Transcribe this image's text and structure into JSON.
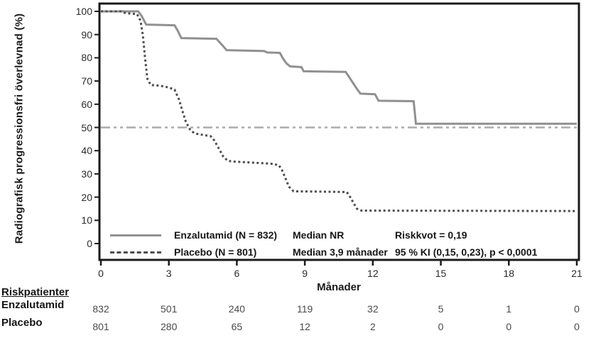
{
  "chart_data": {
    "type": "line",
    "subtype": "kaplan-meier-step",
    "title": "",
    "ylabel": "Radiografisk progressionsfri överlevnad (%)",
    "xlabel": "Månader",
    "xlim": [
      0,
      21
    ],
    "ylim": [
      0,
      100
    ],
    "xticks": [
      "0",
      "3",
      "6",
      "9",
      "12",
      "15",
      "18",
      "21"
    ],
    "yticks": [
      "0",
      "10",
      "20",
      "30",
      "40",
      "50",
      "60",
      "70",
      "80",
      "90",
      "100"
    ],
    "grid": false,
    "legend_position": "bottom-left-inside",
    "reference_line": {
      "y": 50,
      "style": "dash-dot"
    },
    "series": [
      {
        "name": "Enzalutamid (N = 832)",
        "style": "solid",
        "points": [
          [
            0,
            100
          ],
          [
            1.65,
            100
          ],
          [
            1.8,
            98
          ],
          [
            2.0,
            94.3
          ],
          [
            3.25,
            94.0
          ],
          [
            3.4,
            91.5
          ],
          [
            3.55,
            88.5
          ],
          [
            5.1,
            88.2
          ],
          [
            5.35,
            85.5
          ],
          [
            5.55,
            83.3
          ],
          [
            7.2,
            82.9
          ],
          [
            7.35,
            82.3
          ],
          [
            7.9,
            82.1
          ],
          [
            8.05,
            79.5
          ],
          [
            8.2,
            77.5
          ],
          [
            8.35,
            76.3
          ],
          [
            8.85,
            76.0
          ],
          [
            8.95,
            74.2
          ],
          [
            10.8,
            73.9
          ],
          [
            11.0,
            71.0
          ],
          [
            11.15,
            68.8
          ],
          [
            11.3,
            66.6
          ],
          [
            11.45,
            64.6
          ],
          [
            12.1,
            64.3
          ],
          [
            12.25,
            61.5
          ],
          [
            13.8,
            61.3
          ],
          [
            13.9,
            51.6
          ],
          [
            21,
            51.6
          ]
        ]
      },
      {
        "name": "Placebo (N = 801)",
        "style": "dotted",
        "points": [
          [
            0,
            100
          ],
          [
            0.9,
            100
          ],
          [
            1.1,
            99.2
          ],
          [
            1.6,
            98.8
          ],
          [
            1.75,
            96
          ],
          [
            1.85,
            90
          ],
          [
            1.95,
            80
          ],
          [
            2.05,
            71
          ],
          [
            2.2,
            68.3
          ],
          [
            2.6,
            68.0
          ],
          [
            3.0,
            67.2
          ],
          [
            3.25,
            66.3
          ],
          [
            3.45,
            62
          ],
          [
            3.6,
            57
          ],
          [
            3.75,
            52.5
          ],
          [
            3.95,
            48.8
          ],
          [
            4.15,
            47.4
          ],
          [
            4.85,
            46.2
          ],
          [
            5.0,
            44.5
          ],
          [
            5.2,
            41
          ],
          [
            5.4,
            37.5
          ],
          [
            5.6,
            35.6
          ],
          [
            5.9,
            35.3
          ],
          [
            7.5,
            34.4
          ],
          [
            7.85,
            33.8
          ],
          [
            8.0,
            31.5
          ],
          [
            8.15,
            28
          ],
          [
            8.3,
            24.5
          ],
          [
            8.5,
            22.5
          ],
          [
            10.85,
            22.2
          ],
          [
            11.0,
            20
          ],
          [
            11.15,
            17.5
          ],
          [
            11.3,
            15.0
          ],
          [
            11.5,
            14.2
          ],
          [
            21,
            14.0
          ]
        ]
      }
    ]
  },
  "legend": {
    "rows": [
      {
        "label": "Enzalutamid (N = 832)",
        "median": "Median NR",
        "stat": "Riskkvot = 0,19"
      },
      {
        "label": "Placebo (N = 801)",
        "median": "Median 3,9 månader",
        "stat": "95 % KI (0,15, 0,23), p < 0,0001"
      }
    ]
  },
  "risk_table": {
    "header": "Riskpatienter",
    "rows": [
      {
        "label": "Enzalutamid",
        "values": [
          "832",
          "501",
          "240",
          "119",
          "32",
          "5",
          "1",
          "0"
        ]
      },
      {
        "label": "Placebo",
        "values": [
          "801",
          "280",
          "65",
          "12",
          "2",
          "0",
          "0",
          "0"
        ]
      }
    ]
  },
  "colors": {
    "axis": "#1a1a1a",
    "enzalutamid_line": "#8f9191",
    "placebo_line": "#4d4d4d",
    "reference_line": "#acacac",
    "tick_text": "#2b2b2b",
    "risk_value_text": "#4a4a4a"
  }
}
